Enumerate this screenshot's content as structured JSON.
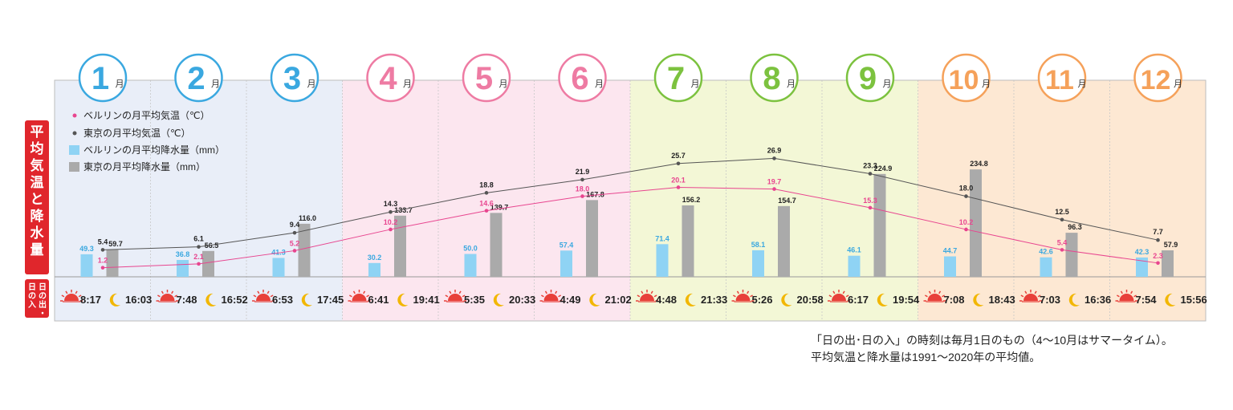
{
  "chart_data": {
    "type": "bar+line",
    "side_title": "平均気温と降水量",
    "sun_label": "日の出・日の入",
    "month_suffix": "月",
    "months": [
      "1",
      "2",
      "3",
      "4",
      "5",
      "6",
      "7",
      "8",
      "9",
      "10",
      "11",
      "12"
    ],
    "series": [
      {
        "name": "ベルリンの月平均気温（℃）",
        "type": "line",
        "color": "#e8458f",
        "values": [
          1.2,
          2.1,
          5.2,
          10.2,
          14.6,
          18.0,
          20.1,
          19.7,
          15.3,
          10.2,
          5.4,
          2.3
        ]
      },
      {
        "name": "東京の月平均気温（℃）",
        "type": "line",
        "color": "#555555",
        "values": [
          5.4,
          6.1,
          9.4,
          14.3,
          18.8,
          21.9,
          25.7,
          26.9,
          23.3,
          18.0,
          12.5,
          7.7
        ]
      },
      {
        "name": "ベルリンの月平均降水量（mm）",
        "type": "bar",
        "color": "#8fd3f4",
        "values": [
          49.3,
          36.8,
          41.3,
          30.2,
          50.0,
          57.4,
          71.4,
          58.1,
          46.1,
          44.7,
          42.6,
          42.3
        ]
      },
      {
        "name": "東京の月平均降水量（mm）",
        "type": "bar",
        "color": "#aaaaaa",
        "values": [
          59.7,
          56.5,
          116.0,
          133.7,
          139.7,
          167.8,
          156.2,
          154.7,
          224.9,
          234.8,
          96.3,
          57.9
        ]
      }
    ],
    "sunrise": [
      "8:17",
      "7:48",
      "6:53",
      "6:41",
      "5:35",
      "4:49",
      "4:48",
      "5:26",
      "6:17",
      "7:08",
      "7:03",
      "7:54"
    ],
    "sunset": [
      "16:03",
      "16:52",
      "17:45",
      "19:41",
      "20:33",
      "21:02",
      "21:33",
      "20:58",
      "19:54",
      "18:43",
      "16:36",
      "15:56"
    ],
    "season_colors": {
      "winter": "#e9eef8",
      "spring": "#fce6ef",
      "summer": "#f3f7d6",
      "autumn": "#fde8d3",
      "winter_accent": "#3aa8e0",
      "spring_accent": "#ee7ba3",
      "summer_accent": "#7cc23f",
      "autumn_accent": "#f5a15a",
      "sidebar": "#e0262c"
    }
  },
  "footnote": {
    "line1": "「日の出･日の入」の時刻は毎月1日のもの（4～10月はサマータイム）。",
    "line2": "平均気温と降水量は1991～2020年の平均値。"
  }
}
